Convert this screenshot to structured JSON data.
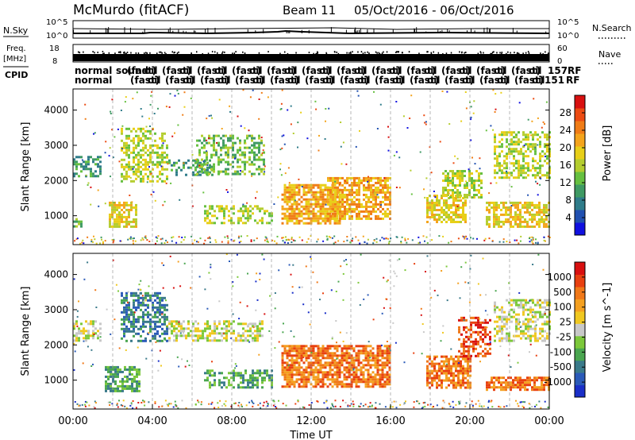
{
  "header": {
    "station": "McMurdo (fitACF)",
    "beam": "Beam 11",
    "date_range": "05/Oct/2016 - 06/Oct/2016"
  },
  "strips": {
    "nsky": {
      "label": "N.Sky",
      "left_ticks": [
        "10^5",
        "10^0"
      ],
      "right_ticks": [
        "10^5",
        "10^0"
      ],
      "right_label": "N.Search"
    },
    "freq": {
      "label_line1": "Freq.",
      "label_line2": "[MHz]",
      "left_ticks": [
        "18",
        "8"
      ],
      "right_ticks": [
        "60",
        "0"
      ],
      "right_label": "Nave"
    },
    "cpid": {
      "label": "CPID",
      "top_row": [
        "normal",
        "normal",
        "sound",
        "(fast)",
        "oil",
        "(fast)",
        "157",
        "RF"
      ],
      "bottom_row": [
        "normal",
        "(fast)",
        "oil",
        "(fast)",
        "151",
        "RF"
      ]
    }
  },
  "chart_data": [
    {
      "type": "heatmap",
      "name": "power",
      "ylabel": "Slant Range [km]",
      "yticks": [
        1000,
        2000,
        3000,
        4000
      ],
      "ylim": [
        180,
        4600
      ],
      "xlim": [
        0,
        24
      ],
      "colorbar": {
        "label": "Power [dB]",
        "ticks": [
          "28",
          "24",
          "20",
          "16",
          "12",
          "8",
          "4"
        ],
        "colors": [
          "#1010e0",
          "#2050b0",
          "#2f7c8a",
          "#3f9a64",
          "#66c040",
          "#b4cd2f",
          "#e8cf18",
          "#f4a41c",
          "#f07c16",
          "#ec4b12",
          "#d81010"
        ]
      },
      "echo_regions": [
        {
          "t0": 0.0,
          "t1": 1.4,
          "r0": 2150,
          "r1": 2700,
          "level": 3,
          "density": 0.55
        },
        {
          "t0": 0.0,
          "t1": 0.4,
          "r0": 700,
          "r1": 1000,
          "level": 4,
          "density": 0.6
        },
        {
          "t0": 1.8,
          "t1": 3.2,
          "r0": 700,
          "r1": 1400,
          "level": 6,
          "density": 0.7
        },
        {
          "t0": 2.4,
          "t1": 4.8,
          "r0": 2000,
          "r1": 3500,
          "level": 5,
          "density": 0.5
        },
        {
          "t0": 4.8,
          "t1": 7.0,
          "r0": 2150,
          "r1": 2600,
          "level": 3,
          "density": 0.45
        },
        {
          "t0": 6.2,
          "t1": 9.6,
          "r0": 2200,
          "r1": 3300,
          "level": 4,
          "density": 0.45
        },
        {
          "t0": 6.6,
          "t1": 10.0,
          "r0": 800,
          "r1": 1300,
          "level": 5,
          "density": 0.45
        },
        {
          "t0": 10.5,
          "t1": 13.5,
          "r0": 800,
          "r1": 1900,
          "level": 7,
          "density": 0.7
        },
        {
          "t0": 12.8,
          "t1": 16.0,
          "r0": 900,
          "r1": 2100,
          "level": 7,
          "density": 0.65
        },
        {
          "t0": 17.8,
          "t1": 19.8,
          "r0": 800,
          "r1": 1600,
          "level": 6,
          "density": 0.65
        },
        {
          "t0": 18.6,
          "t1": 20.6,
          "r0": 1500,
          "r1": 2300,
          "level": 5,
          "density": 0.55
        },
        {
          "t0": 20.8,
          "t1": 24.0,
          "r0": 700,
          "r1": 1400,
          "level": 6,
          "density": 0.65
        },
        {
          "t0": 21.2,
          "t1": 24.0,
          "r0": 2100,
          "r1": 3400,
          "level": 5,
          "density": 0.5
        }
      ]
    },
    {
      "type": "heatmap",
      "name": "velocity",
      "ylabel": "Slant Range [km]",
      "yticks": [
        1000,
        2000,
        3000,
        4000
      ],
      "ylim": [
        180,
        4600
      ],
      "xlim": [
        0,
        24
      ],
      "xlabel": "Time UT",
      "xticks": [
        "00:00",
        "04:00",
        "08:00",
        "12:00",
        "16:00",
        "20:00",
        "00:00"
      ],
      "colorbar": {
        "label": "Velocity [m s^-1]",
        "ticks": [
          "1000",
          "500",
          "100",
          "25",
          "-25",
          "-100",
          "-500",
          "-1000"
        ],
        "colors": [
          "#1a2fc8",
          "#2a5ab8",
          "#3a7a8a",
          "#4aa650",
          "#7cc83a",
          "#c8c8c8",
          "#f0c820",
          "#f4a020",
          "#f07818",
          "#e84010",
          "#d81010"
        ]
      },
      "echo_regions": [
        {
          "t0": 0.0,
          "t1": 1.4,
          "r0": 2150,
          "r1": 2700,
          "level": 5,
          "density": 0.5
        },
        {
          "t0": 1.6,
          "t1": 3.4,
          "r0": 700,
          "r1": 1400,
          "level": 3,
          "density": 0.7
        },
        {
          "t0": 2.4,
          "t1": 4.8,
          "r0": 2100,
          "r1": 3500,
          "level": 2,
          "density": 0.5
        },
        {
          "t0": 4.8,
          "t1": 9.6,
          "r0": 2150,
          "r1": 2700,
          "level": 5,
          "density": 0.5
        },
        {
          "t0": 6.6,
          "t1": 10.0,
          "r0": 800,
          "r1": 1300,
          "level": 3,
          "density": 0.45
        },
        {
          "t0": 10.5,
          "t1": 16.0,
          "r0": 800,
          "r1": 2000,
          "level": 8,
          "density": 0.75
        },
        {
          "t0": 17.8,
          "t1": 20.0,
          "r0": 800,
          "r1": 1700,
          "level": 8,
          "density": 0.7
        },
        {
          "t0": 19.4,
          "t1": 21.0,
          "r0": 1700,
          "r1": 2800,
          "level": 9,
          "density": 0.5
        },
        {
          "t0": 20.8,
          "t1": 24.0,
          "r0": 700,
          "r1": 1100,
          "level": 8,
          "density": 0.7
        },
        {
          "t0": 21.2,
          "t1": 24.0,
          "r0": 2100,
          "r1": 3300,
          "level": 5,
          "density": 0.5
        }
      ]
    }
  ]
}
